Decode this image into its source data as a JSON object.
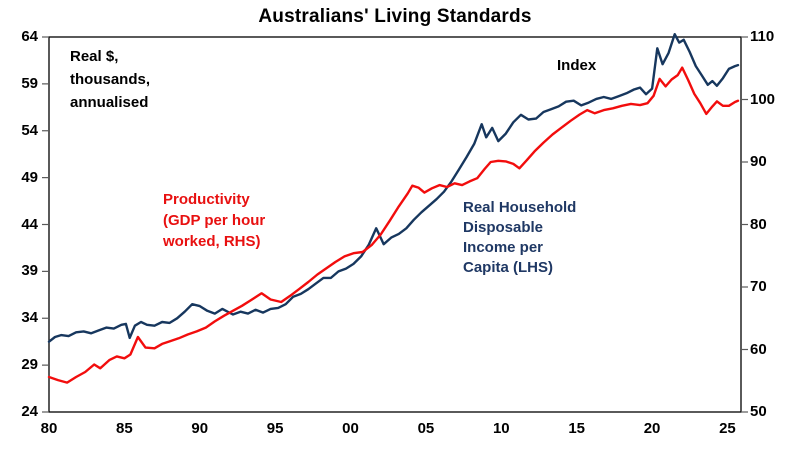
{
  "annotations": {
    "left_axis_note_lines": [
      "Real $,",
      "thousands,",
      "annualised"
    ],
    "index_label": "Index",
    "productivity_label_lines": [
      "Productivity",
      "(GDP per hour",
      "worked, RHS)"
    ],
    "income_label_lines": [
      "Real Household",
      "Disposable",
      "Income per",
      "Capita (LHS)"
    ]
  },
  "colors": {
    "income_line": "#17375e",
    "income_text": "#1f3864",
    "productivity_line": "#f20d0d",
    "productivity_text": "#e81010",
    "axis": "#000000",
    "tick_mark": "#595959"
  },
  "chart_data": {
    "type": "line",
    "title": "Australians' Living Standards",
    "x_axis": {
      "tick_labels": [
        "80",
        "85",
        "90",
        "95",
        "00",
        "05",
        "10",
        "15",
        "20",
        "25"
      ],
      "tick_values": [
        1980,
        1985,
        1990,
        1995,
        2000,
        2005,
        2010,
        2015,
        2020,
        2025
      ],
      "range": [
        1980,
        2025.9
      ]
    },
    "left_axis": {
      "title": "Real $, thousands, annualised",
      "tick_values": [
        64,
        59,
        54,
        49,
        44,
        39,
        34,
        29,
        24
      ],
      "range": [
        24,
        64
      ]
    },
    "right_axis": {
      "title": "Index",
      "tick_values": [
        110,
        100,
        90,
        80,
        70,
        60,
        50
      ],
      "range": [
        50,
        110
      ]
    },
    "legend": "none",
    "grid": false,
    "series": [
      {
        "id": "income",
        "name": "Real Household Disposable Income per Capita (LHS)",
        "axis": "left",
        "color": "#17375e",
        "points": [
          [
            1980.0,
            31.5
          ],
          [
            1980.4,
            32.0
          ],
          [
            1980.8,
            32.2
          ],
          [
            1981.3,
            32.1
          ],
          [
            1981.8,
            32.5
          ],
          [
            1982.3,
            32.6
          ],
          [
            1982.8,
            32.4
          ],
          [
            1983.3,
            32.7
          ],
          [
            1983.8,
            33.0
          ],
          [
            1984.3,
            32.9
          ],
          [
            1984.8,
            33.3
          ],
          [
            1985.1,
            33.4
          ],
          [
            1985.35,
            31.9
          ],
          [
            1985.7,
            33.2
          ],
          [
            1986.1,
            33.6
          ],
          [
            1986.5,
            33.3
          ],
          [
            1987.0,
            33.2
          ],
          [
            1987.5,
            33.6
          ],
          [
            1988.0,
            33.5
          ],
          [
            1988.5,
            34.0
          ],
          [
            1989.0,
            34.7
          ],
          [
            1989.5,
            35.5
          ],
          [
            1990.0,
            35.3
          ],
          [
            1990.5,
            34.8
          ],
          [
            1991.0,
            34.5
          ],
          [
            1991.5,
            35.0
          ],
          [
            1992.2,
            34.4
          ],
          [
            1992.7,
            34.7
          ],
          [
            1993.2,
            34.5
          ],
          [
            1993.7,
            34.9
          ],
          [
            1994.2,
            34.6
          ],
          [
            1994.7,
            35.0
          ],
          [
            1995.2,
            35.1
          ],
          [
            1995.7,
            35.5
          ],
          [
            1996.2,
            36.3
          ],
          [
            1996.7,
            36.6
          ],
          [
            1997.2,
            37.1
          ],
          [
            1997.7,
            37.7
          ],
          [
            1998.2,
            38.3
          ],
          [
            1998.7,
            38.3
          ],
          [
            1999.2,
            39.0
          ],
          [
            1999.7,
            39.3
          ],
          [
            2000.2,
            39.8
          ],
          [
            2000.7,
            40.6
          ],
          [
            2001.2,
            41.8
          ],
          [
            2001.7,
            43.6
          ],
          [
            2002.2,
            41.9
          ],
          [
            2002.7,
            42.6
          ],
          [
            2003.2,
            43.0
          ],
          [
            2003.7,
            43.6
          ],
          [
            2004.2,
            44.5
          ],
          [
            2004.7,
            45.3
          ],
          [
            2005.2,
            46.0
          ],
          [
            2005.7,
            46.7
          ],
          [
            2006.2,
            47.5
          ],
          [
            2006.7,
            48.6
          ],
          [
            2007.2,
            49.9
          ],
          [
            2007.7,
            51.2
          ],
          [
            2008.2,
            52.6
          ],
          [
            2008.7,
            54.7
          ],
          [
            2009.0,
            53.3
          ],
          [
            2009.4,
            54.3
          ],
          [
            2009.8,
            52.9
          ],
          [
            2010.3,
            53.7
          ],
          [
            2010.8,
            54.9
          ],
          [
            2011.3,
            55.7
          ],
          [
            2011.8,
            55.2
          ],
          [
            2012.3,
            55.3
          ],
          [
            2012.8,
            56.0
          ],
          [
            2013.3,
            56.3
          ],
          [
            2013.8,
            56.6
          ],
          [
            2014.3,
            57.1
          ],
          [
            2014.8,
            57.2
          ],
          [
            2015.3,
            56.7
          ],
          [
            2015.8,
            57.0
          ],
          [
            2016.3,
            57.4
          ],
          [
            2016.8,
            57.6
          ],
          [
            2017.3,
            57.4
          ],
          [
            2017.8,
            57.7
          ],
          [
            2018.3,
            58.0
          ],
          [
            2018.8,
            58.4
          ],
          [
            2019.2,
            58.6
          ],
          [
            2019.6,
            57.9
          ],
          [
            2020.0,
            58.5
          ],
          [
            2020.35,
            62.8
          ],
          [
            2020.7,
            61.1
          ],
          [
            2021.1,
            62.3
          ],
          [
            2021.5,
            64.3
          ],
          [
            2021.8,
            63.4
          ],
          [
            2022.1,
            63.7
          ],
          [
            2022.5,
            62.4
          ],
          [
            2022.9,
            60.9
          ],
          [
            2023.3,
            59.9
          ],
          [
            2023.7,
            58.9
          ],
          [
            2024.0,
            59.3
          ],
          [
            2024.3,
            58.8
          ],
          [
            2024.7,
            59.6
          ],
          [
            2025.1,
            60.6
          ],
          [
            2025.5,
            60.9
          ],
          [
            2025.7,
            61.0
          ]
        ]
      },
      {
        "id": "productivity",
        "name": "Productivity (GDP per hour worked, RHS)",
        "axis": "right",
        "color": "#f20d0d",
        "points": [
          [
            1980.0,
            55.6
          ],
          [
            1980.6,
            55.1
          ],
          [
            1981.2,
            54.7
          ],
          [
            1981.8,
            55.6
          ],
          [
            1982.4,
            56.4
          ],
          [
            1983.0,
            57.6
          ],
          [
            1983.4,
            57.0
          ],
          [
            1984.0,
            58.3
          ],
          [
            1984.5,
            58.9
          ],
          [
            1985.0,
            58.6
          ],
          [
            1985.4,
            59.2
          ],
          [
            1985.9,
            62.0
          ],
          [
            1986.4,
            60.3
          ],
          [
            1987.0,
            60.2
          ],
          [
            1987.5,
            60.9
          ],
          [
            1988.0,
            61.3
          ],
          [
            1988.6,
            61.8
          ],
          [
            1989.2,
            62.4
          ],
          [
            1989.8,
            62.9
          ],
          [
            1990.4,
            63.5
          ],
          [
            1991.0,
            64.5
          ],
          [
            1991.6,
            65.4
          ],
          [
            1992.2,
            66.2
          ],
          [
            1992.8,
            67.0
          ],
          [
            1993.4,
            67.9
          ],
          [
            1994.1,
            69.0
          ],
          [
            1994.7,
            68.0
          ],
          [
            1995.4,
            67.6
          ],
          [
            1996.0,
            68.6
          ],
          [
            1996.6,
            69.7
          ],
          [
            1997.2,
            70.8
          ],
          [
            1997.8,
            72.0
          ],
          [
            1998.4,
            73.0
          ],
          [
            1999.0,
            74.0
          ],
          [
            1999.6,
            74.9
          ],
          [
            2000.2,
            75.4
          ],
          [
            2000.8,
            75.6
          ],
          [
            2001.4,
            76.7
          ],
          [
            2002.0,
            78.4
          ],
          [
            2002.6,
            80.6
          ],
          [
            2003.2,
            82.9
          ],
          [
            2003.8,
            85.0
          ],
          [
            2004.1,
            86.2
          ],
          [
            2004.5,
            85.9
          ],
          [
            2004.9,
            85.1
          ],
          [
            2005.4,
            85.8
          ],
          [
            2005.9,
            86.3
          ],
          [
            2006.4,
            86.0
          ],
          [
            2006.9,
            86.6
          ],
          [
            2007.4,
            86.3
          ],
          [
            2007.9,
            86.9
          ],
          [
            2008.4,
            87.4
          ],
          [
            2008.9,
            88.9
          ],
          [
            2009.3,
            90.0
          ],
          [
            2009.8,
            90.2
          ],
          [
            2010.3,
            90.1
          ],
          [
            2010.8,
            89.7
          ],
          [
            2011.2,
            89.0
          ],
          [
            2011.7,
            90.3
          ],
          [
            2012.2,
            91.7
          ],
          [
            2012.8,
            93.1
          ],
          [
            2013.4,
            94.4
          ],
          [
            2014.0,
            95.5
          ],
          [
            2014.6,
            96.6
          ],
          [
            2015.2,
            97.6
          ],
          [
            2015.7,
            98.3
          ],
          [
            2016.2,
            97.8
          ],
          [
            2016.8,
            98.3
          ],
          [
            2017.4,
            98.6
          ],
          [
            2018.0,
            99.0
          ],
          [
            2018.6,
            99.3
          ],
          [
            2019.2,
            99.1
          ],
          [
            2019.7,
            99.4
          ],
          [
            2020.1,
            100.6
          ],
          [
            2020.5,
            103.3
          ],
          [
            2020.9,
            102.1
          ],
          [
            2021.3,
            103.2
          ],
          [
            2021.7,
            103.9
          ],
          [
            2022.0,
            105.1
          ],
          [
            2022.4,
            103.1
          ],
          [
            2022.8,
            100.9
          ],
          [
            2023.2,
            99.4
          ],
          [
            2023.6,
            97.7
          ],
          [
            2024.0,
            98.9
          ],
          [
            2024.3,
            99.7
          ],
          [
            2024.7,
            99.0
          ],
          [
            2025.1,
            99.0
          ],
          [
            2025.5,
            99.6
          ],
          [
            2025.7,
            99.8
          ]
        ]
      }
    ]
  }
}
